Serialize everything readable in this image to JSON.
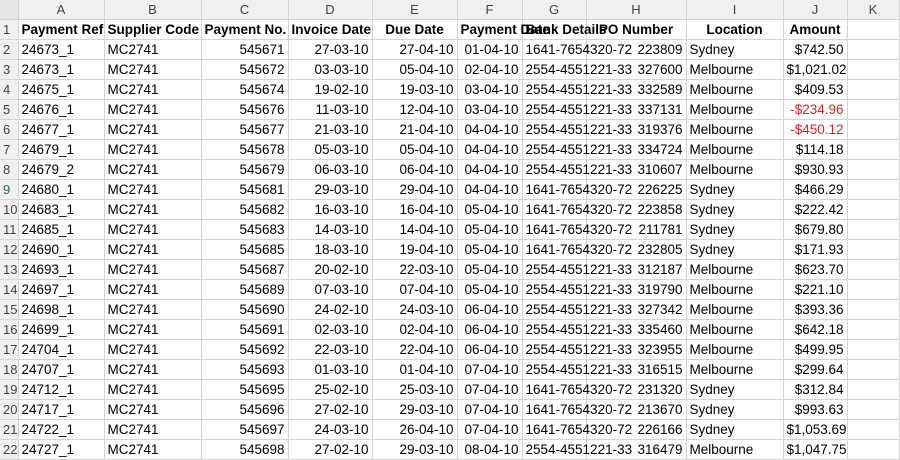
{
  "columns": [
    "A",
    "B",
    "C",
    "D",
    "E",
    "F",
    "G",
    "H",
    "I",
    "J",
    "K"
  ],
  "headers": [
    "Payment Ref",
    "Supplier Code",
    "Payment No.",
    "Invoice Date",
    "Due Date",
    "Payment Date",
    "Bank Details",
    "PO Number",
    "Location",
    "Amount"
  ],
  "rows": [
    {
      "n": "2",
      "c": [
        "24673_1",
        "MC2741",
        "545671",
        "27-03-10",
        "27-04-10",
        "01-04-10",
        "1641-7654320-72",
        "223809",
        "Sydney",
        "$742.50"
      ]
    },
    {
      "n": "3",
      "c": [
        "24673_1",
        "MC2741",
        "545672",
        "03-03-10",
        "05-04-10",
        "02-04-10",
        "2554-4551221-33",
        "327600",
        "Melbourne",
        "$1,021.02"
      ]
    },
    {
      "n": "4",
      "c": [
        "24675_1",
        "MC2741",
        "545674",
        "19-02-10",
        "19-03-10",
        "03-04-10",
        "2554-4551221-33",
        "332589",
        "Melbourne",
        "$409.53"
      ]
    },
    {
      "n": "5",
      "c": [
        "24676_1",
        "MC2741",
        "545676",
        "11-03-10",
        "12-04-10",
        "03-04-10",
        "2554-4551221-33",
        "337131",
        "Melbourne",
        "-$234.96"
      ]
    },
    {
      "n": "6",
      "c": [
        "24677_1",
        "MC2741",
        "545677",
        "21-03-10",
        "21-04-10",
        "04-04-10",
        "2554-4551221-33",
        "319376",
        "Melbourne",
        "-$450.12"
      ]
    },
    {
      "n": "7",
      "c": [
        "24679_1",
        "MC2741",
        "545678",
        "05-03-10",
        "05-04-10",
        "04-04-10",
        "2554-4551221-33",
        "334724",
        "Melbourne",
        "$114.18"
      ]
    },
    {
      "n": "8",
      "c": [
        "24679_2",
        "MC2741",
        "545679",
        "06-03-10",
        "06-04-10",
        "04-04-10",
        "2554-4551221-33",
        "310607",
        "Melbourne",
        "$930.93"
      ]
    },
    {
      "n": "9",
      "c": [
        "24680_1",
        "MC2741",
        "545681",
        "29-03-10",
        "29-04-10",
        "04-04-10",
        "1641-7654320-72",
        "226225",
        "Sydney",
        "$466.29"
      ]
    },
    {
      "n": "10",
      "c": [
        "24683_1",
        "MC2741",
        "545682",
        "16-03-10",
        "16-04-10",
        "05-04-10",
        "1641-7654320-72",
        "223858",
        "Sydney",
        "$222.42"
      ]
    },
    {
      "n": "11",
      "c": [
        "24685_1",
        "MC2741",
        "545683",
        "14-03-10",
        "14-04-10",
        "05-04-10",
        "1641-7654320-72",
        "211781",
        "Sydney",
        "$679.80"
      ]
    },
    {
      "n": "12",
      "c": [
        "24690_1",
        "MC2741",
        "545685",
        "18-03-10",
        "19-04-10",
        "05-04-10",
        "1641-7654320-72",
        "232805",
        "Sydney",
        "$171.93"
      ]
    },
    {
      "n": "13",
      "c": [
        "24693_1",
        "MC2741",
        "545687",
        "20-02-10",
        "22-03-10",
        "05-04-10",
        "2554-4551221-33",
        "312187",
        "Melbourne",
        "$623.70"
      ]
    },
    {
      "n": "14",
      "c": [
        "24697_1",
        "MC2741",
        "545689",
        "07-03-10",
        "07-04-10",
        "05-04-10",
        "2554-4551221-33",
        "319790",
        "Melbourne",
        "$221.10"
      ]
    },
    {
      "n": "15",
      "c": [
        "24698_1",
        "MC2741",
        "545690",
        "24-02-10",
        "24-03-10",
        "06-04-10",
        "2554-4551221-33",
        "327342",
        "Melbourne",
        "$393.36"
      ]
    },
    {
      "n": "16",
      "c": [
        "24699_1",
        "MC2741",
        "545691",
        "02-03-10",
        "02-04-10",
        "06-04-10",
        "2554-4551221-33",
        "335460",
        "Melbourne",
        "$642.18"
      ]
    },
    {
      "n": "17",
      "c": [
        "24704_1",
        "MC2741",
        "545692",
        "22-03-10",
        "22-04-10",
        "06-04-10",
        "2554-4551221-33",
        "323955",
        "Melbourne",
        "$499.95"
      ]
    },
    {
      "n": "18",
      "c": [
        "24707_1",
        "MC2741",
        "545693",
        "01-03-10",
        "01-04-10",
        "07-04-10",
        "2554-4551221-33",
        "316515",
        "Melbourne",
        "$299.64"
      ]
    },
    {
      "n": "19",
      "c": [
        "24712_1",
        "MC2741",
        "545695",
        "25-02-10",
        "25-03-10",
        "07-04-10",
        "1641-7654320-72",
        "231320",
        "Sydney",
        "$312.84"
      ]
    },
    {
      "n": "20",
      "c": [
        "24717_1",
        "MC2741",
        "545696",
        "27-02-10",
        "29-03-10",
        "07-04-10",
        "1641-7654320-72",
        "213670",
        "Sydney",
        "$993.63"
      ]
    },
    {
      "n": "21",
      "c": [
        "24722_1",
        "MC2741",
        "545697",
        "24-03-10",
        "26-04-10",
        "07-04-10",
        "1641-7654320-72",
        "226166",
        "Sydney",
        "$1,053.69"
      ]
    },
    {
      "n": "22",
      "c": [
        "24727_1",
        "MC2741",
        "545698",
        "27-02-10",
        "29-03-10",
        "08-04-10",
        "2554-4551221-33",
        "316479",
        "Melbourne",
        "$1,047.75"
      ]
    }
  ],
  "header_row_number": "1",
  "active_row_number": "9",
  "colors": {
    "negative": "#e02020",
    "active_row_header": "#217346"
  }
}
